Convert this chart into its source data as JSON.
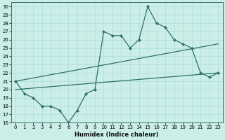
{
  "xlabel": "Humidex (Indice chaleur)",
  "background_color": "#cceee8",
  "line_color": "#2d7068",
  "grid_color": "#aaddda",
  "xlim": [
    -0.5,
    23.5
  ],
  "ylim": [
    16,
    30.5
  ],
  "xticks": [
    0,
    1,
    2,
    3,
    4,
    5,
    6,
    7,
    8,
    9,
    10,
    11,
    12,
    13,
    14,
    15,
    16,
    17,
    18,
    19,
    20,
    21,
    22,
    23
  ],
  "yticks": [
    16,
    17,
    18,
    19,
    20,
    21,
    22,
    23,
    24,
    25,
    26,
    27,
    28,
    29,
    30
  ],
  "curve1_x": [
    0,
    1,
    2,
    3,
    4,
    5,
    6,
    7,
    8,
    9,
    10,
    11,
    12,
    13,
    14,
    15,
    16,
    17,
    18,
    19,
    20,
    21,
    22,
    23
  ],
  "curve1_y": [
    21.0,
    19.5,
    19.0,
    18.0,
    18.0,
    17.5,
    16.0,
    17.5,
    19.5,
    20.0,
    27.0,
    26.5,
    26.5,
    25.0,
    26.0,
    30.0,
    28.0,
    27.5,
    26.0,
    25.5,
    25.0,
    22.0,
    21.5,
    22.0
  ],
  "curve2_x": [
    0,
    23
  ],
  "curve2_y": [
    21.0,
    25.5
  ],
  "curve3_x": [
    0,
    23
  ],
  "curve3_y": [
    20.0,
    22.0
  ]
}
